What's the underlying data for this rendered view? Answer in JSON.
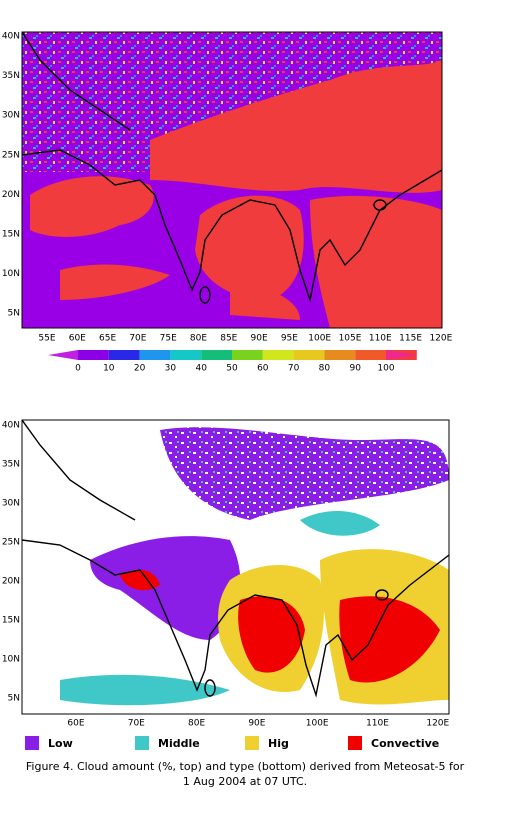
{
  "top_map": {
    "lat_labels": [
      "40N",
      "35N",
      "30N",
      "25N",
      "20N",
      "15N",
      "10N",
      "5N"
    ],
    "lon_labels": [
      "55E",
      "60E",
      "65E",
      "70E",
      "75E",
      "80E",
      "85E",
      "90E",
      "95E",
      "100E",
      "105E",
      "110E",
      "115E",
      "120E"
    ]
  },
  "colorbar": {
    "labels": [
      0,
      10,
      20,
      30,
      40,
      50,
      60,
      70,
      80,
      90,
      100
    ],
    "colors": [
      "#c020e0",
      "#8c00e6",
      "#2828e6",
      "#1e96f0",
      "#14c8c8",
      "#14be78",
      "#78d21e",
      "#d2e61e",
      "#e6c81e",
      "#e68c1e",
      "#f05a28",
      "#f03c3c",
      "#f0288c"
    ]
  },
  "bottom_map": {
    "lat_labels": [
      "40N",
      "35N",
      "30N",
      "25N",
      "20N",
      "15N",
      "10N",
      "5N"
    ],
    "lon_labels": [
      "60E",
      "70E",
      "80E",
      "90E",
      "100E",
      "110E",
      "120E"
    ]
  },
  "legend": [
    {
      "label": "Low",
      "color": "#8a1ee6"
    },
    {
      "label": "Middle",
      "color": "#40c8c8"
    },
    {
      "label": "Hig",
      "color": "#f0d030"
    },
    {
      "label": "Convective",
      "color": "#f00000"
    }
  ],
  "caption": [
    "Figure 4.  Cloud amount (%, top) and type (bottom) derived from Meteosat-5 for",
    "1 Aug 2004 at 07 UTC."
  ]
}
